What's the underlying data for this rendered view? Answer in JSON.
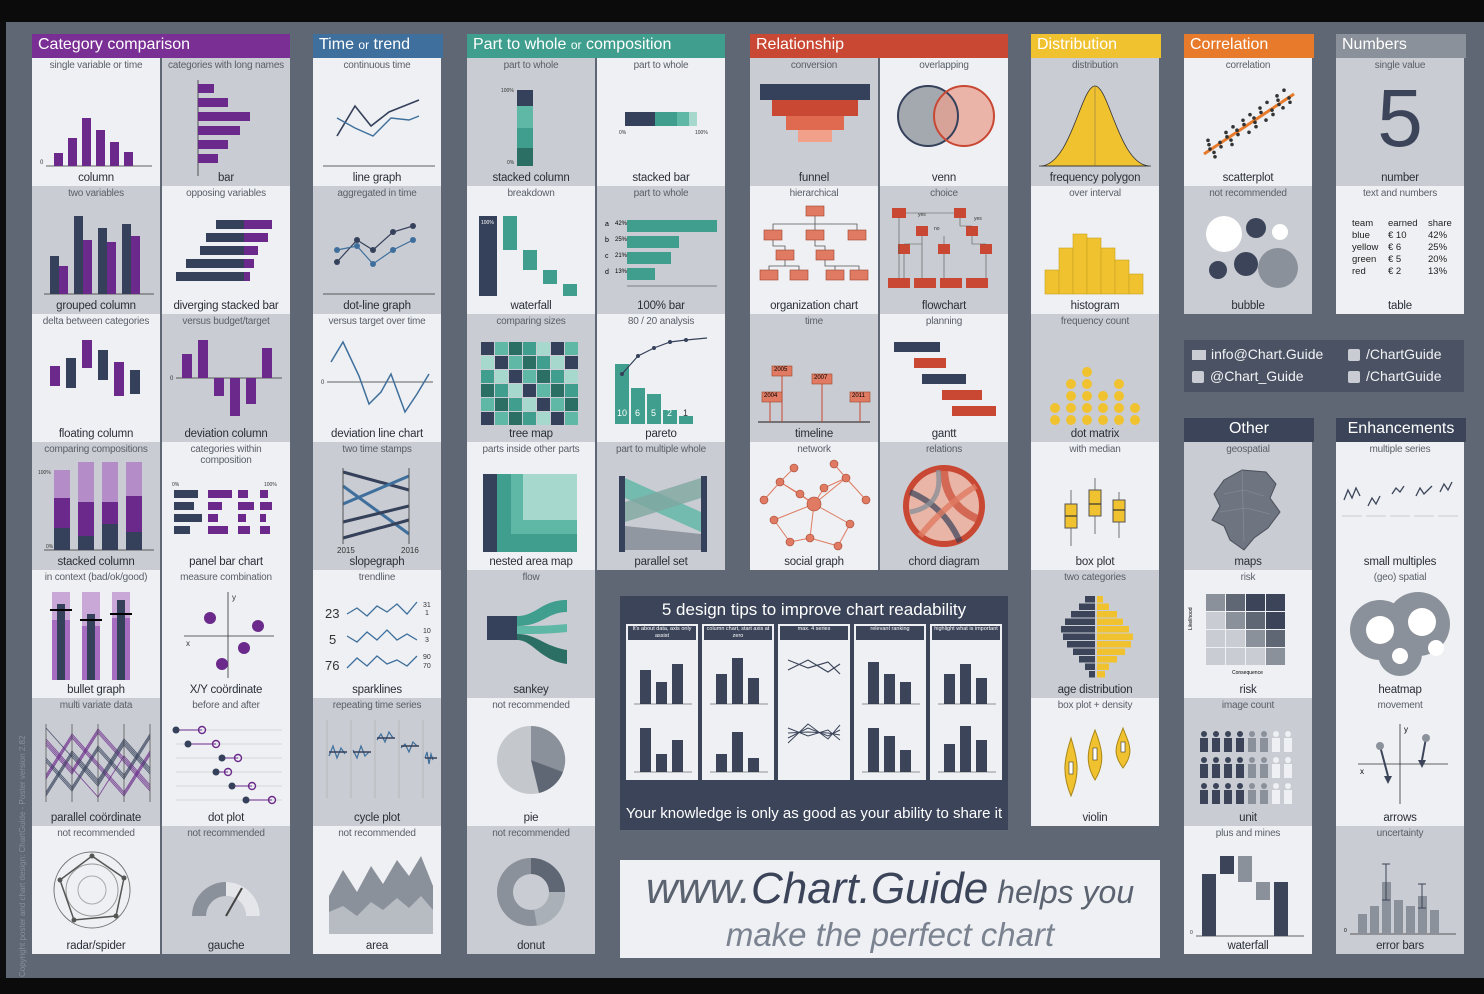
{
  "colors": {
    "purple": "#6b2a8b",
    "navy": "#35405a",
    "teal": "#3f9e8e",
    "red": "#c94833",
    "yellow": "#f1c230",
    "orange": "#e87b2b",
    "gray": "#8b919a"
  },
  "categories": [
    {
      "id": "cat",
      "title_main": "Category comparison",
      "title_small": "",
      "color": "#7a2f95"
    },
    {
      "id": "time",
      "title_main": "Time",
      "title_small": "or",
      "title_end": "trend",
      "color": "#3f6f9c"
    },
    {
      "id": "part",
      "title_main": "Part to whole",
      "title_small": "or",
      "title_end": "composition",
      "color": "#3f9e8e"
    },
    {
      "id": "rel",
      "title_main": "Relationship",
      "title_small": "",
      "color": "#c94833"
    },
    {
      "id": "dist",
      "title_main": "Distribution",
      "title_small": "",
      "color": "#f1c230"
    },
    {
      "id": "corr",
      "title_main": "Correlation",
      "title_small": "",
      "color": "#e87b2b"
    },
    {
      "id": "num",
      "title_main": "Numbers",
      "title_small": "",
      "color": "#8b919a"
    },
    {
      "id": "other",
      "title_main": "Other",
      "title_small": "",
      "color": "#3b4459"
    },
    {
      "id": "enh",
      "title_main": "Enhancements",
      "title_small": "",
      "color": "#3b4459"
    }
  ],
  "cells": {
    "cat1": {
      "sub": "single variable or time",
      "label": "column"
    },
    "cat2": {
      "sub": "categories with long names",
      "label": "bar"
    },
    "cat3": {
      "sub": "two variables",
      "label": "grouped column"
    },
    "cat4": {
      "sub": "opposing variables",
      "label": "diverging stacked bar"
    },
    "cat5": {
      "sub": "delta between categories",
      "label": "floating column"
    },
    "cat6": {
      "sub": "versus budget/target",
      "label": "deviation column"
    },
    "cat7": {
      "sub": "comparing compositions",
      "label": "stacked column"
    },
    "cat8": {
      "sub": "categories within composition",
      "label": "panel bar chart"
    },
    "cat9": {
      "sub": "in context (bad/ok/good)",
      "label": "bullet graph"
    },
    "cat10": {
      "sub": "measure combination",
      "label": "X/Y coördinate"
    },
    "cat11": {
      "sub": "multi variate data",
      "label": "parallel coördinate"
    },
    "cat12": {
      "sub": "before and after",
      "label": "dot plot"
    },
    "cat13": {
      "sub": "not recommended",
      "label": "radar/spider"
    },
    "cat14": {
      "sub": "not recommended",
      "label": "gauche"
    },
    "time1": {
      "sub": "continuous time",
      "label": "line graph"
    },
    "time2": {
      "sub": "aggregated in time",
      "label": "dot-line graph"
    },
    "time3": {
      "sub": "versus target over time",
      "label": "deviation line chart"
    },
    "time4": {
      "sub": "two time stamps",
      "label": "slopegraph",
      "y1": "2015",
      "y2": "2016"
    },
    "time5": {
      "sub": "trendline",
      "label": "sparklines",
      "n1": "23",
      "n2": "5",
      "n3": "76",
      "r1": "31",
      "r2": "1",
      "r3": "10",
      "r4": "3",
      "r5": "90",
      "r6": "70"
    },
    "time6": {
      "sub": "repeating time series",
      "label": "cycle plot"
    },
    "time7": {
      "sub": "not recommended",
      "label": "area"
    },
    "part1": {
      "sub": "part to whole",
      "label": "stacked column"
    },
    "part2": {
      "sub": "part to whole",
      "label": "stacked bar"
    },
    "part3": {
      "sub": "breakdown",
      "label": "waterfall"
    },
    "part4": {
      "sub": "part to whole",
      "label": "100% bar",
      "rows": [
        "a",
        "b",
        "c",
        "d"
      ],
      "vals": [
        "42%",
        "25%",
        "21%",
        "13%"
      ]
    },
    "part5": {
      "sub": "comparing sizes",
      "label": "tree map"
    },
    "part6": {
      "sub": "80 / 20 analysis",
      "label": "pareto",
      "bars": [
        "10",
        "6",
        "5",
        "2",
        "1"
      ]
    },
    "part7": {
      "sub": "parts inside other parts",
      "label": "nested area map"
    },
    "part8": {
      "sub": "part to multiple whole",
      "label": "parallel set"
    },
    "part9": {
      "sub": "flow",
      "label": "sankey"
    },
    "part10": {
      "sub": "not recommended",
      "label": "pie"
    },
    "part11": {
      "sub": "not recommended",
      "label": "donut"
    },
    "rel1": {
      "sub": "conversion",
      "label": "funnel"
    },
    "rel2": {
      "sub": "overlapping",
      "label": "venn"
    },
    "rel3": {
      "sub": "hierarchical",
      "label": "organization chart"
    },
    "rel4": {
      "sub": "choice",
      "label": "flowchart"
    },
    "rel5": {
      "sub": "time",
      "label": "timeline",
      "years": [
        "2004",
        "2005",
        "2007",
        "2011"
      ]
    },
    "rel6": {
      "sub": "planning",
      "label": "gantt"
    },
    "rel7": {
      "sub": "network",
      "label": "social graph"
    },
    "rel8": {
      "sub": "relations",
      "label": "chord diagram"
    },
    "dist1": {
      "sub": "distribution",
      "label": "frequency polygon"
    },
    "dist2": {
      "sub": "over interval",
      "label": "histogram"
    },
    "dist3": {
      "sub": "frequency count",
      "label": "dot matrix"
    },
    "dist4": {
      "sub": "with median",
      "label": "box plot"
    },
    "dist5": {
      "sub": "two categories",
      "label": "age distribution"
    },
    "dist6": {
      "sub": "box plot + density",
      "label": "violin"
    },
    "corr1": {
      "sub": "correlation",
      "label": "scatterplot"
    },
    "corr2": {
      "sub": "not recommended",
      "label": "bubble"
    },
    "num1": {
      "sub": "single value",
      "label": "number",
      "value": "5"
    },
    "num2": {
      "sub": "text and numbers",
      "label": "table",
      "head": [
        "team",
        "earned",
        "share"
      ],
      "rows": [
        [
          "blue",
          "€  10",
          "42%"
        ],
        [
          "yellow",
          "€   6",
          "25%"
        ],
        [
          "green",
          "€   5",
          "20%"
        ],
        [
          "red",
          "€   2",
          "13%"
        ]
      ]
    },
    "oth1": {
      "sub": "geospatial",
      "label": "maps"
    },
    "oth2": {
      "sub": "risk",
      "label": "risk",
      "ylab": "Likelihood",
      "xlab": "Consequence"
    },
    "oth3": {
      "sub": "image count",
      "label": "unit"
    },
    "oth4": {
      "sub": "plus and mines",
      "label": "waterfall"
    },
    "enh1": {
      "sub": "multiple series",
      "label": "small multiples"
    },
    "enh2": {
      "sub": "(geo) spatial",
      "label": "heatmap"
    },
    "enh3": {
      "sub": "movement",
      "label": "arrows"
    },
    "enh4": {
      "sub": "uncertainty",
      "label": "error bars"
    }
  },
  "tips": {
    "title": "5 design tips to improve chart readability",
    "footer": "Your knowledge is only as good as your ability to share it",
    "heads": [
      "It's about data, axis only assist",
      "column chart, start axis at zero",
      "max. 4 series",
      "relevant ranking",
      "highlight what is important"
    ]
  },
  "contact": {
    "email": "info@Chart.Guide",
    "twitter": "@Chart_Guide",
    "facebook": "/ChartGuide",
    "pinterest": "/ChartGuide"
  },
  "guide": {
    "prefix": "www.",
    "brand1": "Chart",
    "dot": ".",
    "brand2": "Guide",
    "suffix": " helps you",
    "line2": "make the perfect chart"
  },
  "copyright": "Copyright poster and chart design: ChartGuide - Poster version 2.82"
}
